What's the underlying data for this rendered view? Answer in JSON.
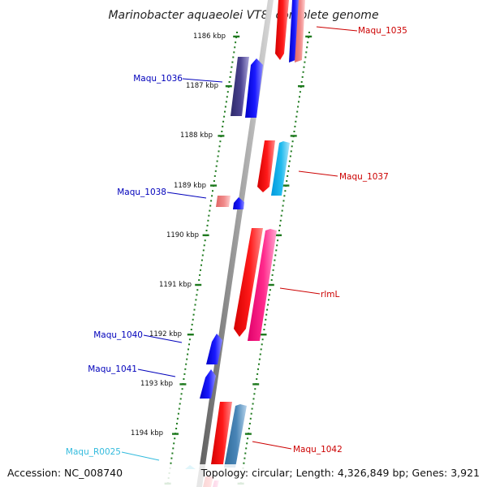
{
  "title": "Marinobacter aquaeolei VT8, complete genome",
  "footer": {
    "accession": "Accession: NC_008740",
    "topology": "Topology: circular; Length: 4,326,849 bp; Genes: 3,921"
  },
  "colors": {
    "backbone": "#808080",
    "tick": "#1f7a1f",
    "label_red": "#cc0000",
    "label_blue": "#0000bb",
    "label_cyan": "#33bbdd"
  },
  "scale": {
    "unit": "kbp",
    "labels": [
      "1186 kbp",
      "1187 kbp",
      "1188 kbp",
      "1189 kbp",
      "1190 kbp",
      "1191 kbp",
      "1192 kbp",
      "1193 kbp",
      "1194 kbp"
    ]
  },
  "genes": [
    {
      "name": "Maqu_1035",
      "color": "label_red"
    },
    {
      "name": "Maqu_1036",
      "color": "label_blue"
    },
    {
      "name": "Maqu_1037",
      "color": "label_red"
    },
    {
      "name": "Maqu_1038",
      "color": "label_blue"
    },
    {
      "name": "rlmL",
      "color": "label_red"
    },
    {
      "name": "Maqu_1040",
      "color": "label_blue"
    },
    {
      "name": "Maqu_1041",
      "color": "label_blue"
    },
    {
      "name": "Maqu_1042",
      "color": "label_red"
    },
    {
      "name": "Maqu_R0025",
      "color": "label_cyan"
    }
  ]
}
